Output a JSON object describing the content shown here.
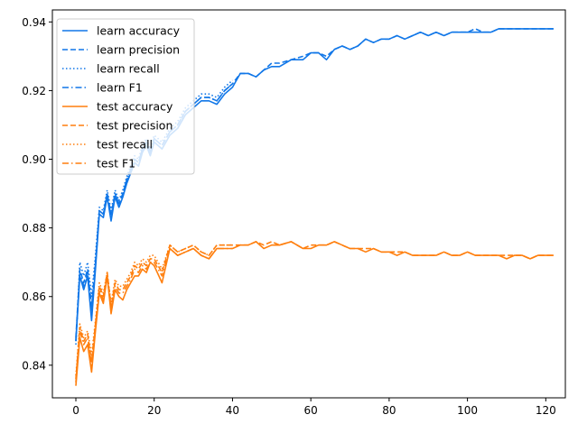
{
  "chart_data": {
    "type": "line",
    "title": "",
    "xlabel": "",
    "ylabel": "",
    "xlim": [
      -6,
      125
    ],
    "ylim": [
      0.8305,
      0.9435
    ],
    "xticks": [
      0,
      20,
      40,
      60,
      80,
      100,
      120
    ],
    "yticks": [
      0.84,
      0.86,
      0.88,
      0.9,
      0.92,
      0.94
    ],
    "ytick_labels": [
      "0.84",
      "0.86",
      "0.88",
      "0.90",
      "0.92",
      "0.94"
    ],
    "grid": false,
    "legend_position": "top-left",
    "colors": {
      "learn": "#1177e8",
      "test": "#ff7f0e"
    },
    "series": [
      {
        "name": "learn accuracy",
        "group": "learn",
        "style": "solid",
        "x": [
          0,
          1,
          2,
          3,
          4,
          5,
          6,
          7,
          8,
          9,
          10,
          11,
          12,
          13,
          14,
          15,
          16,
          17,
          18,
          19,
          20,
          22,
          24,
          26,
          28,
          30,
          32,
          34,
          36,
          38,
          40,
          42,
          44,
          46,
          48,
          50,
          52,
          55,
          58,
          60,
          62,
          64,
          66,
          68,
          70,
          72,
          74,
          76,
          78,
          80,
          82,
          84,
          86,
          88,
          90,
          92,
          94,
          96,
          98,
          100,
          102,
          104,
          106,
          108,
          110,
          112,
          114,
          116,
          118,
          120,
          122
        ],
        "y": [
          0.847,
          0.866,
          0.862,
          0.866,
          0.853,
          0.868,
          0.884,
          0.883,
          0.889,
          0.882,
          0.889,
          0.886,
          0.889,
          0.893,
          0.896,
          0.899,
          0.898,
          0.902,
          0.904,
          0.901,
          0.905,
          0.903,
          0.907,
          0.909,
          0.913,
          0.915,
          0.917,
          0.917,
          0.916,
          0.919,
          0.921,
          0.925,
          0.925,
          0.924,
          0.926,
          0.927,
          0.927,
          0.929,
          0.929,
          0.931,
          0.931,
          0.929,
          0.932,
          0.933,
          0.932,
          0.933,
          0.935,
          0.934,
          0.935,
          0.935,
          0.936,
          0.935,
          0.936,
          0.937,
          0.936,
          0.937,
          0.936,
          0.937,
          0.937,
          0.937,
          0.937,
          0.937,
          0.937,
          0.938,
          0.938,
          0.938,
          0.938,
          0.938,
          0.938,
          0.938,
          0.938
        ]
      },
      {
        "name": "learn precision",
        "group": "learn",
        "style": "dashed",
        "x": [
          0,
          1,
          2,
          3,
          4,
          5,
          6,
          7,
          8,
          9,
          10,
          11,
          12,
          13,
          14,
          15,
          16,
          17,
          18,
          19,
          20,
          22,
          24,
          26,
          28,
          30,
          32,
          34,
          36,
          38,
          40,
          42,
          44,
          46,
          48,
          50,
          52,
          55,
          58,
          60,
          62,
          64,
          66,
          68,
          70,
          72,
          74,
          76,
          78,
          80,
          82,
          84,
          86,
          88,
          90,
          92,
          94,
          96,
          98,
          100,
          102,
          104,
          106,
          108,
          110,
          112,
          114,
          116,
          118,
          120,
          122
        ],
        "y": [
          0.848,
          0.868,
          0.864,
          0.868,
          0.857,
          0.87,
          0.885,
          0.884,
          0.89,
          0.884,
          0.89,
          0.887,
          0.89,
          0.894,
          0.897,
          0.9,
          0.899,
          0.903,
          0.905,
          0.902,
          0.906,
          0.904,
          0.908,
          0.91,
          0.914,
          0.916,
          0.918,
          0.918,
          0.917,
          0.92,
          0.922,
          0.925,
          0.925,
          0.924,
          0.926,
          0.928,
          0.928,
          0.929,
          0.93,
          0.931,
          0.931,
          0.93,
          0.932,
          0.933,
          0.932,
          0.933,
          0.935,
          0.934,
          0.935,
          0.935,
          0.936,
          0.935,
          0.936,
          0.937,
          0.936,
          0.937,
          0.936,
          0.937,
          0.937,
          0.937,
          0.938,
          0.937,
          0.937,
          0.938,
          0.938,
          0.938,
          0.938,
          0.938,
          0.938,
          0.938,
          0.938
        ]
      },
      {
        "name": "learn recall",
        "group": "learn",
        "style": "dotted",
        "x": [
          0,
          1,
          2,
          3,
          4,
          5,
          6,
          7,
          8,
          9,
          10,
          11,
          12,
          13,
          14,
          15,
          16,
          17,
          18,
          19,
          20,
          22,
          24,
          26,
          28,
          30,
          32,
          34,
          36,
          38,
          40
        ],
        "y": [
          0.846,
          0.87,
          0.866,
          0.87,
          0.86,
          0.872,
          0.886,
          0.885,
          0.891,
          0.885,
          0.891,
          0.888,
          0.891,
          0.895,
          0.898,
          0.901,
          0.9,
          0.904,
          0.906,
          0.903,
          0.907,
          0.905,
          0.909,
          0.911,
          0.915,
          0.917,
          0.919,
          0.919,
          0.918,
          0.921,
          0.923
        ]
      },
      {
        "name": "learn F1",
        "group": "learn",
        "style": "dashdot",
        "x": [
          0,
          1,
          2,
          3,
          4,
          5,
          6,
          7,
          8,
          9,
          10,
          11,
          12,
          13,
          14,
          15,
          16,
          17,
          18,
          19,
          20,
          22,
          24,
          26,
          28,
          30,
          32,
          34,
          36,
          38,
          40
        ],
        "y": [
          0.847,
          0.867,
          0.863,
          0.867,
          0.856,
          0.869,
          0.885,
          0.884,
          0.89,
          0.883,
          0.89,
          0.887,
          0.89,
          0.894,
          0.897,
          0.9,
          0.899,
          0.903,
          0.905,
          0.902,
          0.906,
          0.904,
          0.908,
          0.91,
          0.914,
          0.916,
          0.918,
          0.918,
          0.917,
          0.92,
          0.922
        ]
      },
      {
        "name": "test accuracy",
        "group": "test",
        "style": "solid",
        "x": [
          0,
          1,
          2,
          3,
          4,
          5,
          6,
          7,
          8,
          9,
          10,
          11,
          12,
          13,
          14,
          15,
          16,
          17,
          18,
          19,
          20,
          22,
          24,
          26,
          28,
          30,
          32,
          34,
          36,
          38,
          40,
          42,
          44,
          46,
          48,
          50,
          52,
          55,
          58,
          60,
          62,
          64,
          66,
          68,
          70,
          72,
          74,
          76,
          78,
          80,
          82,
          84,
          86,
          88,
          90,
          92,
          94,
          96,
          98,
          100,
          102,
          104,
          106,
          108,
          110,
          112,
          114,
          116,
          118,
          120,
          122
        ],
        "y": [
          0.834,
          0.848,
          0.844,
          0.846,
          0.838,
          0.85,
          0.861,
          0.858,
          0.866,
          0.855,
          0.862,
          0.86,
          0.859,
          0.862,
          0.864,
          0.866,
          0.866,
          0.868,
          0.867,
          0.87,
          0.869,
          0.864,
          0.874,
          0.872,
          0.873,
          0.874,
          0.872,
          0.871,
          0.874,
          0.874,
          0.874,
          0.875,
          0.875,
          0.876,
          0.874,
          0.875,
          0.875,
          0.876,
          0.874,
          0.874,
          0.875,
          0.875,
          0.876,
          0.875,
          0.874,
          0.874,
          0.873,
          0.874,
          0.873,
          0.873,
          0.872,
          0.873,
          0.872,
          0.872,
          0.872,
          0.872,
          0.873,
          0.872,
          0.872,
          0.873,
          0.872,
          0.872,
          0.872,
          0.872,
          0.871,
          0.872,
          0.872,
          0.871,
          0.872,
          0.872,
          0.872
        ]
      },
      {
        "name": "test precision",
        "group": "test",
        "style": "dashed",
        "x": [
          0,
          1,
          2,
          3,
          4,
          5,
          6,
          7,
          8,
          9,
          10,
          11,
          12,
          13,
          14,
          15,
          16,
          17,
          18,
          19,
          20,
          22,
          24,
          26,
          28,
          30,
          32,
          34,
          36,
          38,
          40,
          42,
          44,
          46,
          48,
          50,
          52,
          55,
          58,
          60,
          62,
          64,
          66,
          68,
          70,
          72,
          74,
          76,
          78,
          80,
          82,
          84,
          86,
          88,
          90,
          92,
          94,
          96,
          98,
          100,
          102,
          104,
          106,
          108,
          110,
          112,
          114,
          116,
          118,
          120,
          122
        ],
        "y": [
          0.836,
          0.851,
          0.847,
          0.849,
          0.841,
          0.852,
          0.863,
          0.86,
          0.867,
          0.857,
          0.864,
          0.862,
          0.862,
          0.864,
          0.866,
          0.869,
          0.868,
          0.87,
          0.869,
          0.871,
          0.871,
          0.867,
          0.875,
          0.873,
          0.874,
          0.875,
          0.873,
          0.872,
          0.875,
          0.875,
          0.875,
          0.875,
          0.875,
          0.876,
          0.875,
          0.876,
          0.875,
          0.876,
          0.874,
          0.875,
          0.875,
          0.875,
          0.876,
          0.875,
          0.874,
          0.874,
          0.874,
          0.874,
          0.873,
          0.873,
          0.873,
          0.873,
          0.872,
          0.872,
          0.872,
          0.872,
          0.873,
          0.872,
          0.872,
          0.873,
          0.872,
          0.872,
          0.872,
          0.872,
          0.872,
          0.872,
          0.872,
          0.871,
          0.872,
          0.872,
          0.872
        ]
      },
      {
        "name": "test recall",
        "group": "test",
        "style": "dotted",
        "x": [
          0,
          1,
          2,
          3,
          4,
          5,
          6,
          7,
          8,
          9,
          10,
          11,
          12,
          13,
          14,
          15,
          16,
          17,
          18,
          19,
          20,
          22,
          24,
          26,
          28,
          30,
          32,
          34,
          36,
          38,
          40
        ],
        "y": [
          0.837,
          0.852,
          0.848,
          0.85,
          0.843,
          0.853,
          0.864,
          0.861,
          0.867,
          0.858,
          0.865,
          0.863,
          0.863,
          0.865,
          0.867,
          0.87,
          0.869,
          0.871,
          0.87,
          0.872,
          0.872,
          0.868,
          0.875,
          0.873,
          0.874,
          0.875,
          0.873,
          0.872,
          0.875,
          0.875,
          0.875
        ]
      },
      {
        "name": "test F1",
        "group": "test",
        "style": "dashdot",
        "x": [
          0,
          1,
          2,
          3,
          4,
          5,
          6,
          7,
          8,
          9,
          10,
          11,
          12,
          13,
          14,
          15,
          16,
          17,
          18,
          19,
          20,
          22,
          24,
          26,
          28,
          30,
          32,
          34,
          36,
          38,
          40
        ],
        "y": [
          0.835,
          0.85,
          0.846,
          0.848,
          0.84,
          0.851,
          0.862,
          0.859,
          0.866,
          0.856,
          0.863,
          0.861,
          0.861,
          0.863,
          0.865,
          0.868,
          0.867,
          0.869,
          0.868,
          0.87,
          0.87,
          0.866,
          0.874,
          0.872,
          0.873,
          0.874,
          0.872,
          0.871,
          0.874,
          0.874,
          0.874
        ]
      }
    ]
  }
}
